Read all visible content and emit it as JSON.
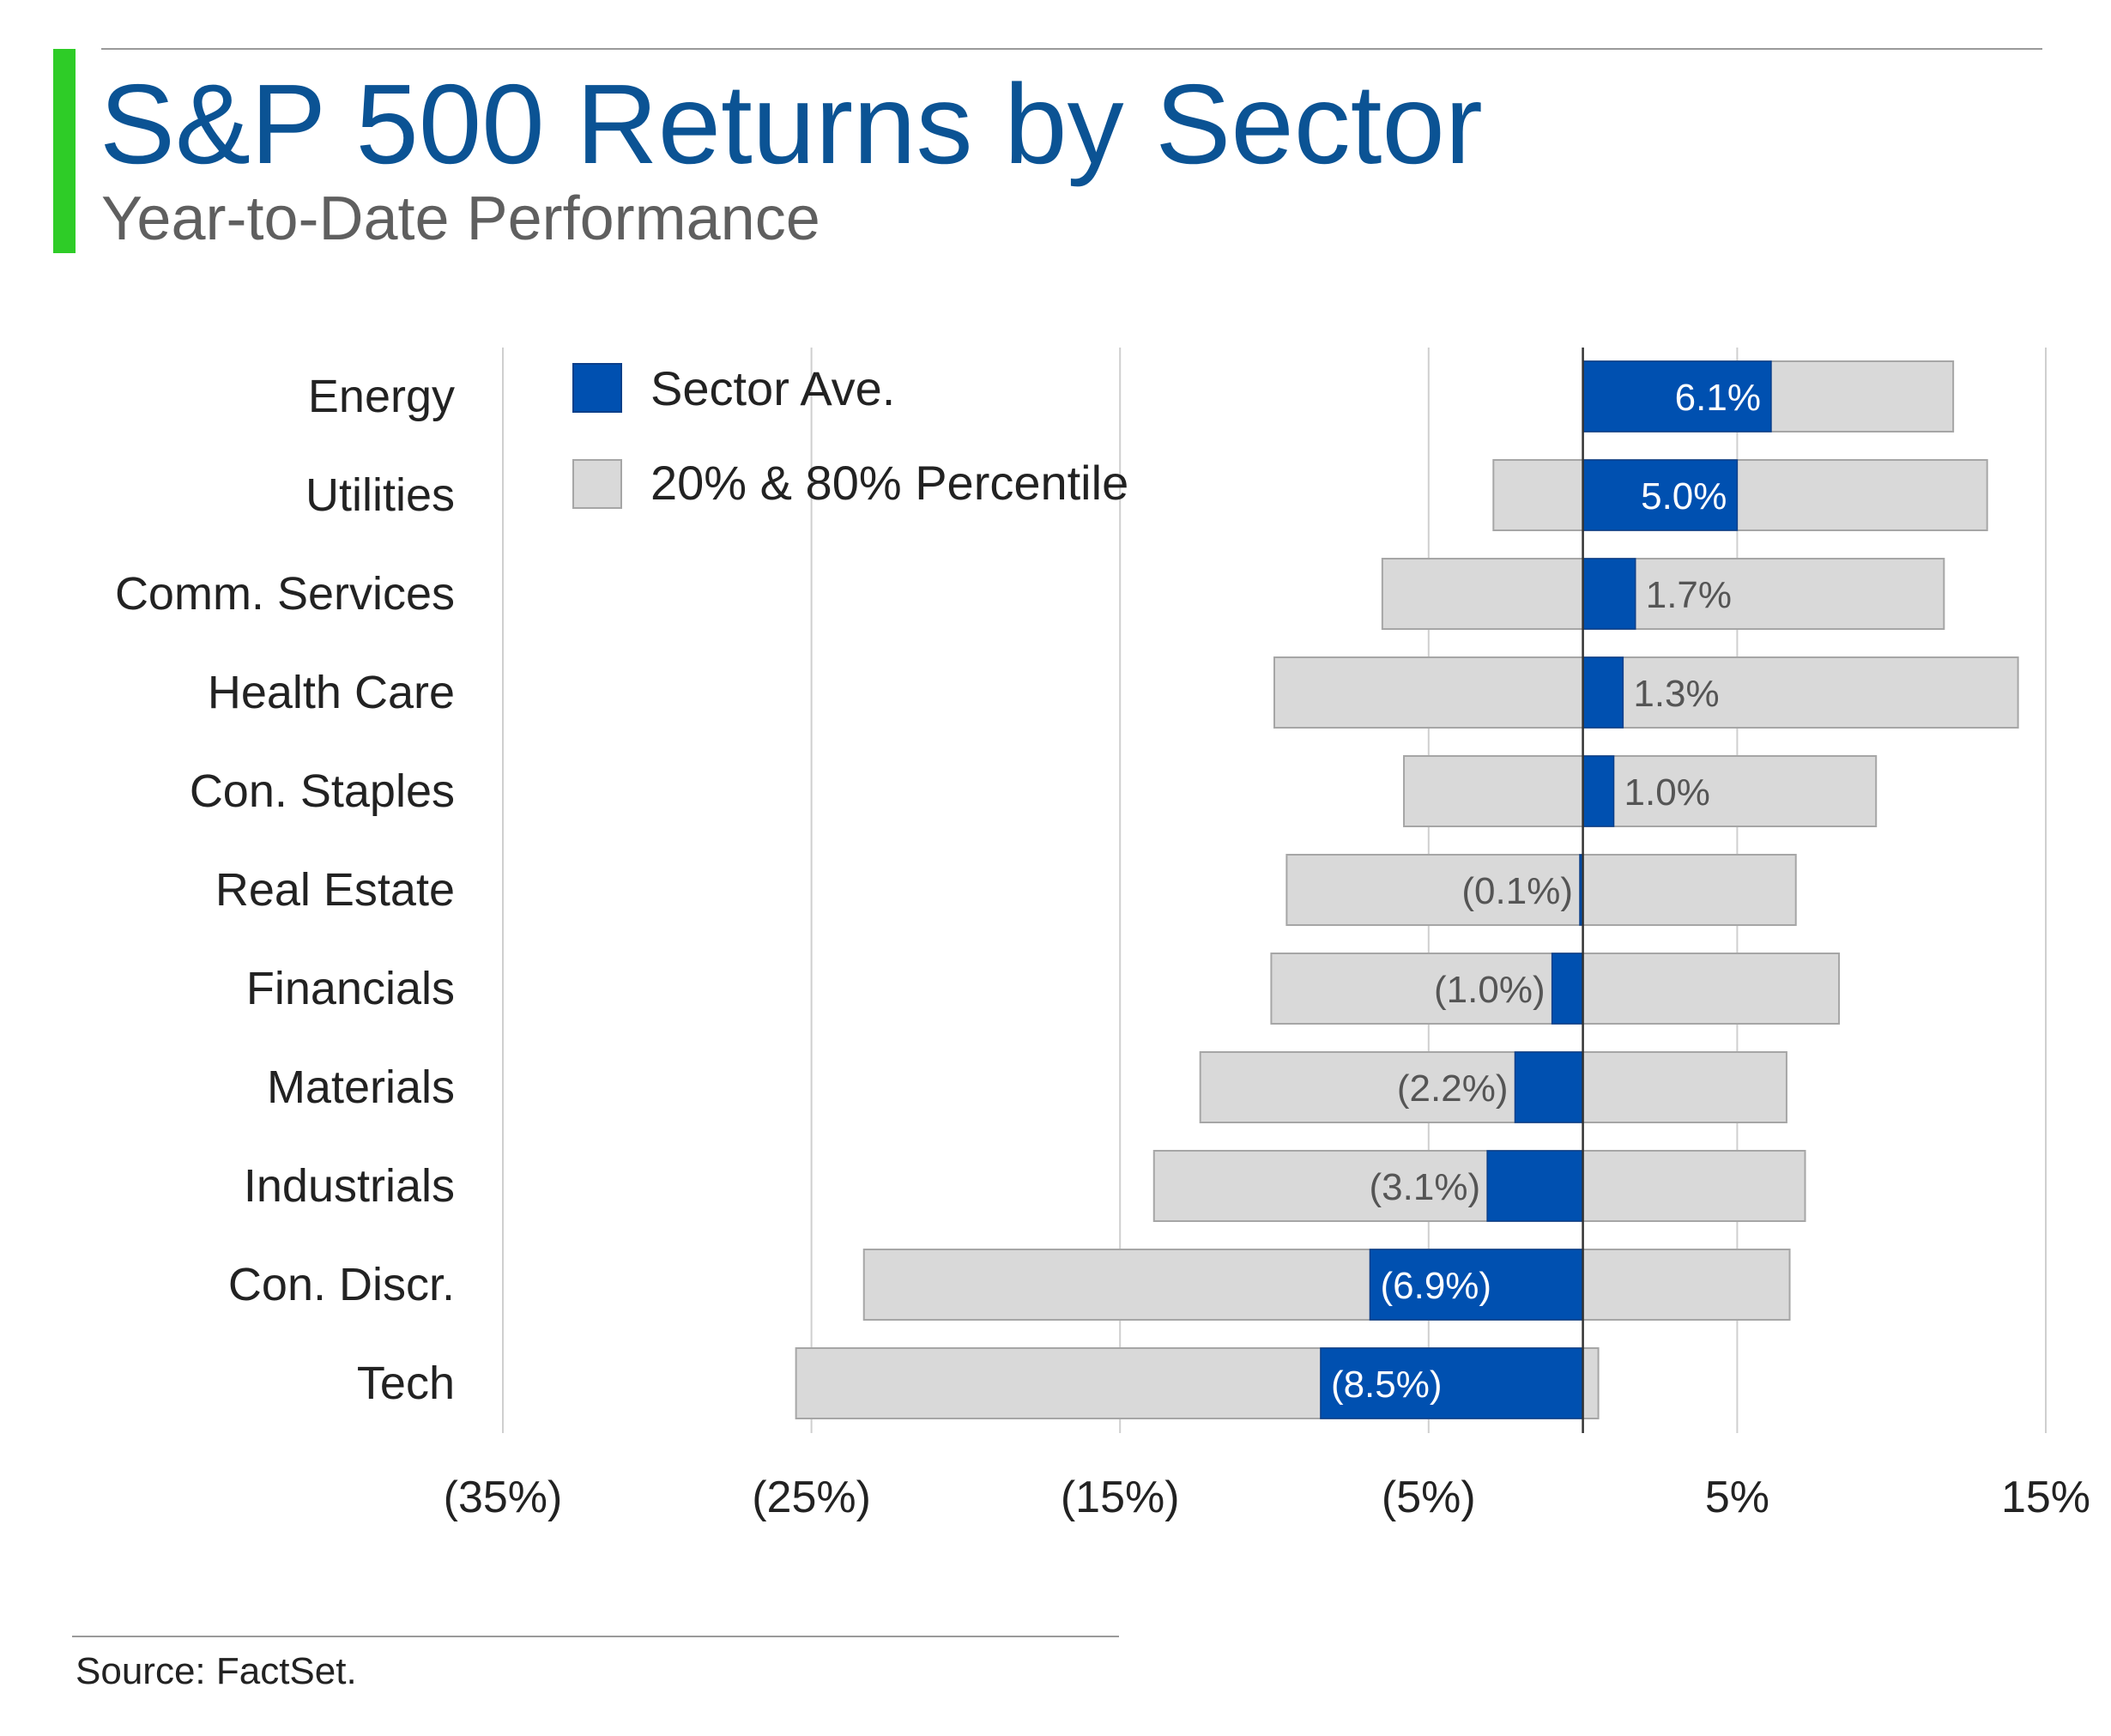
{
  "header": {
    "title": "S&P 500 Returns by Sector",
    "subtitle": "Year-to-Date Performance",
    "accent_color": "#2ecc27"
  },
  "footer": {
    "source": "Source: FactSet."
  },
  "colors": {
    "average": "#0050b0",
    "range": "#d9d9d9",
    "range_border": "#a6a6a6",
    "grid": "#cfcfcf",
    "zero_line": "#333333"
  },
  "chart_data": {
    "type": "bar",
    "orientation": "horizontal",
    "title": "S&P 500 Returns by Sector",
    "subtitle": "Year-to-Date Performance",
    "categories": [
      "Energy",
      "Utilities",
      "Comm. Services",
      "Health Care",
      "Con. Staples",
      "Real Estate",
      "Financials",
      "Materials",
      "Industrials",
      "Con. Discr.",
      "Tech"
    ],
    "series": [
      {
        "name": "Sector Ave.",
        "values": [
          6.1,
          5.0,
          1.7,
          1.3,
          1.0,
          -0.1,
          -1.0,
          -2.2,
          -3.1,
          -6.9,
          -8.5
        ],
        "labels": [
          "6.1%",
          "5.0%",
          "1.7%",
          "1.3%",
          "1.0%",
          "(0.1%)",
          "(1.0%)",
          "(2.2%)",
          "(3.1%)",
          "(6.9%)",
          "(8.5%)"
        ]
      },
      {
        "name": "20% & 80% Percentile",
        "low": [
          0,
          -2.9,
          -6.5,
          -10.0,
          -5.8,
          -9.6,
          -10.1,
          -12.4,
          -13.9,
          -23.3,
          -25.5
        ],
        "high": [
          12.0,
          13.1,
          11.7,
          14.1,
          9.5,
          6.9,
          8.3,
          6.6,
          7.2,
          6.7,
          0.5
        ]
      }
    ],
    "xlim": [
      -35,
      15
    ],
    "xticks": [
      -35,
      -25,
      -15,
      -5,
      5,
      15
    ],
    "xtick_labels": [
      "(35%)",
      "(25%)",
      "(15%)",
      "(5%)",
      "5%",
      "15%"
    ],
    "grid": true,
    "legend": "top-left"
  }
}
